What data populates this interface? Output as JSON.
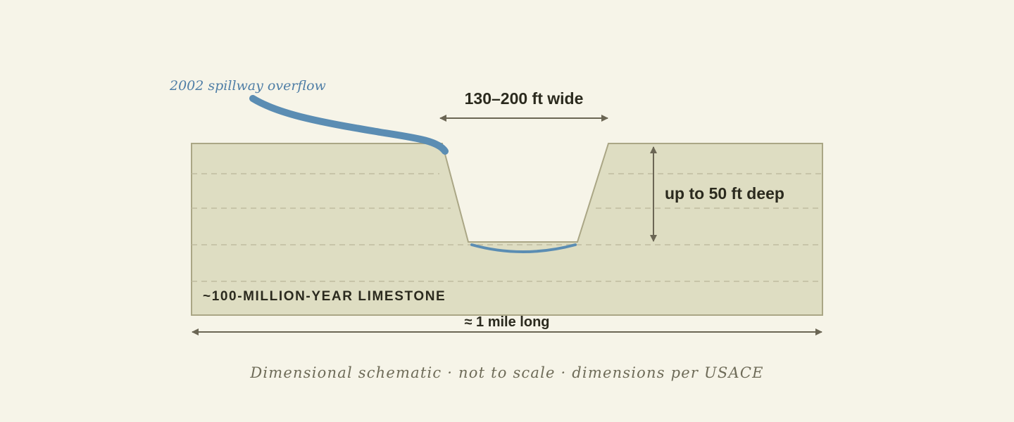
{
  "labels": {
    "overflow": "2002 spillway overflow",
    "width": "130–200 ft wide",
    "depth": "up to 50 ft deep",
    "rock": "~100-MILLION-YEAR LIMESTONE",
    "length": "≈ 1 mile long"
  },
  "caption": "Dimensional schematic · not to scale · dimensions per USACE",
  "colors": {
    "background": "#f6f4e8",
    "rock_fill": "#deddc2",
    "rock_stroke": "#aaa685",
    "strata_dash": "#bfbc9f",
    "water": "#5b8db3",
    "arrow": "#6b6654",
    "text": "#2b2a1e",
    "caption": "#6e6b58"
  }
}
